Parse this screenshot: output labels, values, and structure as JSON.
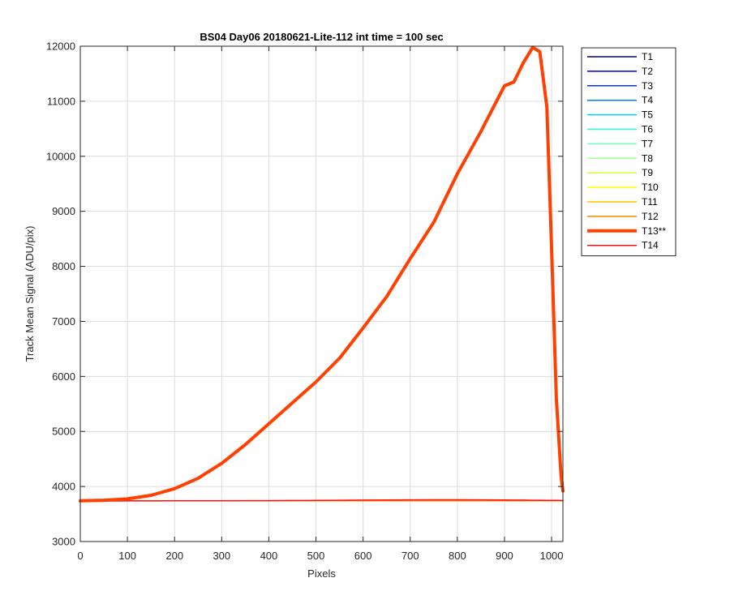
{
  "chart_data": {
    "type": "line",
    "title": "BS04 Day06 20180621-Lite-112 int time = 100 sec",
    "xlabel": "Pixels",
    "ylabel": "Track Mean Signal (ADU/pix)",
    "xlim": [
      0,
      1024
    ],
    "ylim": [
      3000,
      12000
    ],
    "xticks": [
      "0",
      "100",
      "200",
      "300",
      "400",
      "500",
      "600",
      "700",
      "800",
      "900",
      "1000"
    ],
    "yticks": [
      "3000",
      "4000",
      "5000",
      "6000",
      "7000",
      "8000",
      "9000",
      "10000",
      "11000",
      "12000"
    ],
    "grid": true,
    "legend_position": "outside-right",
    "x": [
      0,
      50,
      100,
      150,
      200,
      250,
      300,
      350,
      400,
      450,
      500,
      550,
      600,
      650,
      700,
      750,
      800,
      850,
      900,
      920,
      940,
      960,
      975,
      990,
      1000,
      1010,
      1020,
      1024
    ],
    "series": [
      {
        "name": "T1",
        "color": "#00008f",
        "width": 1.5,
        "values": [
          3740,
          3740,
          3740,
          3740,
          3740,
          3740,
          3740,
          3740,
          3740,
          3740,
          3740,
          3740,
          3740,
          3740,
          3740,
          3740,
          3740,
          3740,
          3740,
          3740,
          3740,
          3740,
          3740,
          3740,
          3740,
          3740,
          3740,
          3740
        ]
      },
      {
        "name": "T2",
        "color": "#0000df",
        "width": 1.5,
        "values": [
          3740,
          3740,
          3740,
          3740,
          3740,
          3740,
          3740,
          3740,
          3740,
          3740,
          3740,
          3740,
          3740,
          3740,
          3740,
          3740,
          3740,
          3740,
          3740,
          3740,
          3740,
          3740,
          3740,
          3740,
          3740,
          3740,
          3740,
          3740
        ]
      },
      {
        "name": "T3",
        "color": "#0030ff",
        "width": 1.5,
        "values": [
          3740,
          3740,
          3740,
          3740,
          3740,
          3740,
          3740,
          3740,
          3740,
          3740,
          3740,
          3740,
          3740,
          3740,
          3740,
          3740,
          3740,
          3740,
          3740,
          3740,
          3740,
          3740,
          3740,
          3740,
          3740,
          3740,
          3740,
          3740
        ]
      },
      {
        "name": "T4",
        "color": "#0080ff",
        "width": 1.5,
        "values": [
          3740,
          3740,
          3740,
          3740,
          3740,
          3740,
          3740,
          3740,
          3740,
          3740,
          3740,
          3740,
          3740,
          3740,
          3740,
          3740,
          3740,
          3740,
          3740,
          3740,
          3740,
          3740,
          3740,
          3740,
          3740,
          3740,
          3740,
          3740
        ]
      },
      {
        "name": "T5",
        "color": "#00cfff",
        "width": 1.5,
        "values": [
          3740,
          3740,
          3740,
          3740,
          3740,
          3740,
          3740,
          3740,
          3740,
          3740,
          3740,
          3740,
          3740,
          3740,
          3740,
          3740,
          3740,
          3740,
          3740,
          3740,
          3740,
          3740,
          3740,
          3740,
          3740,
          3740,
          3740,
          3740
        ]
      },
      {
        "name": "T6",
        "color": "#20ffdf",
        "width": 1.5,
        "values": [
          3740,
          3740,
          3740,
          3740,
          3740,
          3740,
          3740,
          3740,
          3740,
          3740,
          3740,
          3740,
          3740,
          3740,
          3740,
          3740,
          3740,
          3740,
          3740,
          3740,
          3740,
          3740,
          3740,
          3740,
          3740,
          3740,
          3740,
          3740
        ]
      },
      {
        "name": "T7",
        "color": "#70ffc0",
        "width": 1.5,
        "values": [
          3740,
          3740,
          3740,
          3740,
          3740,
          3740,
          3740,
          3740,
          3740,
          3740,
          3740,
          3740,
          3740,
          3740,
          3740,
          3740,
          3740,
          3740,
          3740,
          3740,
          3740,
          3740,
          3740,
          3740,
          3740,
          3740,
          3740,
          3740
        ]
      },
      {
        "name": "T8",
        "color": "#a0ff90",
        "width": 1.5,
        "values": [
          3740,
          3740,
          3740,
          3740,
          3740,
          3740,
          3740,
          3740,
          3740,
          3740,
          3740,
          3740,
          3740,
          3740,
          3740,
          3740,
          3740,
          3740,
          3740,
          3740,
          3740,
          3740,
          3740,
          3740,
          3740,
          3740,
          3740,
          3740
        ]
      },
      {
        "name": "T9",
        "color": "#d0ff40",
        "width": 1.5,
        "values": [
          3740,
          3740,
          3740,
          3740,
          3740,
          3740,
          3740,
          3740,
          3740,
          3740,
          3740,
          3740,
          3740,
          3740,
          3740,
          3740,
          3740,
          3740,
          3740,
          3740,
          3740,
          3740,
          3740,
          3740,
          3740,
          3740,
          3740,
          3740
        ]
      },
      {
        "name": "T10",
        "color": "#ffff00",
        "width": 1.5,
        "values": [
          3740,
          3740,
          3740,
          3740,
          3740,
          3740,
          3740,
          3740,
          3740,
          3740,
          3740,
          3740,
          3740,
          3740,
          3740,
          3740,
          3740,
          3740,
          3740,
          3740,
          3740,
          3740,
          3740,
          3740,
          3740,
          3740,
          3740,
          3740
        ]
      },
      {
        "name": "T11",
        "color": "#ffc000",
        "width": 1.5,
        "values": [
          3740,
          3740,
          3740,
          3740,
          3740,
          3740,
          3740,
          3740,
          3740,
          3740,
          3740,
          3740,
          3740,
          3740,
          3740,
          3740,
          3740,
          3740,
          3740,
          3740,
          3740,
          3740,
          3740,
          3740,
          3740,
          3740,
          3740,
          3740
        ]
      },
      {
        "name": "T12",
        "color": "#ff8000",
        "width": 1.5,
        "values": [
          3740,
          3740,
          3740,
          3740,
          3740,
          3740,
          3740,
          3740,
          3740,
          3740,
          3740,
          3740,
          3740,
          3740,
          3740,
          3740,
          3740,
          3740,
          3740,
          3740,
          3740,
          3740,
          3740,
          3740,
          3740,
          3740,
          3740,
          3740
        ]
      },
      {
        "name": "T14",
        "color": "#ff1010",
        "width": 1.5,
        "values": [
          3730,
          3735,
          3738,
          3738,
          3740,
          3740,
          3740,
          3742,
          3743,
          3745,
          3747,
          3750,
          3752,
          3755,
          3757,
          3758,
          3758,
          3757,
          3755,
          3753,
          3752,
          3750,
          3750,
          3748,
          3748,
          3747,
          3745,
          3745
        ]
      },
      {
        "name": "T13**",
        "color": "#ff4000",
        "width": 4,
        "values": [
          3740,
          3750,
          3775,
          3840,
          3960,
          4150,
          4420,
          4760,
          5140,
          5520,
          5900,
          6330,
          6880,
          7450,
          8140,
          8800,
          9680,
          10450,
          11280,
          11350,
          11700,
          11980,
          11900,
          10900,
          8300,
          5600,
          4200,
          3920
        ]
      }
    ]
  }
}
